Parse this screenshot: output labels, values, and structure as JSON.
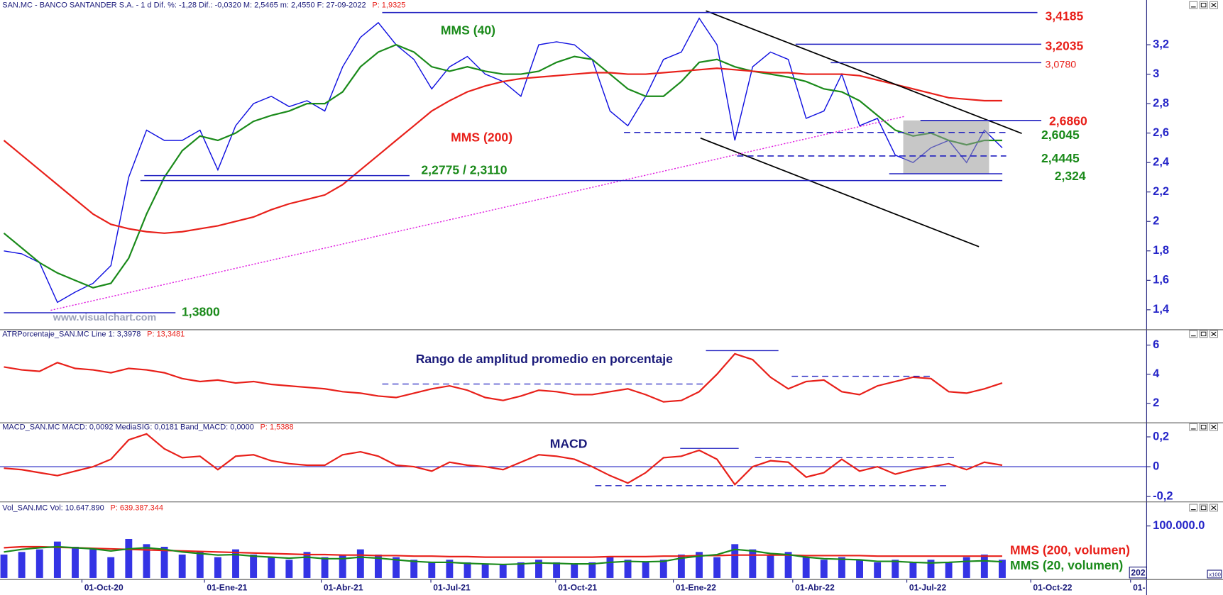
{
  "chart_data": [
    {
      "type": "line",
      "header": "SAN.MC - BANCO SANTANDER S.A. -  1 d  Dif. %: -1,28  Dif.: -0,0320  M: 2,5465  m: 2,4550  F: 27-09-2022",
      "header_p": "P: 1,9325",
      "watermark": "www.visualchart.com",
      "xlim": [
        -0.44,
        128.2
      ],
      "ylim": [
        1.27,
        3.43
      ],
      "yticks": [
        {
          "value": 1.4,
          "label": "1,4"
        },
        {
          "value": 1.6,
          "label": "1,6"
        },
        {
          "value": 1.8,
          "label": "1,8"
        },
        2,
        {
          "value": 2.2,
          "label": "2,2"
        },
        {
          "value": 2.4,
          "label": "2,4"
        },
        {
          "value": 2.6,
          "label": "2,6"
        },
        {
          "value": 2.8,
          "label": "2,8"
        },
        3,
        {
          "value": 3.2,
          "label": "3,2"
        }
      ],
      "x": [
        0,
        2,
        4,
        6,
        8,
        10,
        12,
        14,
        16,
        18,
        20,
        22,
        24,
        26,
        28,
        30,
        32,
        34,
        36,
        38,
        40,
        42,
        44,
        46,
        48,
        50,
        52,
        54,
        56,
        58,
        60,
        62,
        64,
        66,
        68,
        70,
        72,
        74,
        76,
        78,
        80,
        82,
        84,
        86,
        88,
        90,
        92,
        94,
        96,
        98,
        100,
        102,
        104,
        106,
        108,
        110,
        112
      ],
      "series": [
        {
          "color": "#1010e0",
          "values": [
            1.8,
            1.78,
            1.72,
            1.45,
            1.52,
            1.58,
            1.7,
            2.3,
            2.62,
            2.55,
            2.55,
            2.62,
            2.35,
            2.65,
            2.8,
            2.85,
            2.78,
            2.82,
            2.75,
            3.05,
            3.25,
            3.35,
            3.2,
            3.1,
            2.9,
            3.05,
            3.12,
            3.0,
            2.95,
            2.85,
            3.2,
            3.22,
            3.2,
            3.1,
            2.75,
            2.65,
            2.85,
            3.1,
            3.15,
            3.38,
            3.2,
            2.55,
            3.05,
            3.15,
            3.1,
            2.7,
            2.75,
            3.0,
            2.65,
            2.7,
            2.45,
            2.4,
            2.5,
            2.55,
            2.4,
            2.62,
            2.5
          ]
        },
        {
          "name": "MMS (40)",
          "color": "#1a8a1a",
          "values": [
            1.92,
            1.82,
            1.72,
            1.65,
            1.6,
            1.55,
            1.58,
            1.75,
            2.05,
            2.3,
            2.48,
            2.58,
            2.55,
            2.6,
            2.68,
            2.72,
            2.75,
            2.8,
            2.8,
            2.88,
            3.05,
            3.15,
            3.2,
            3.15,
            3.05,
            3.02,
            3.05,
            3.02,
            3.0,
            3.0,
            3.02,
            3.08,
            3.12,
            3.1,
            3.0,
            2.9,
            2.85,
            2.85,
            2.95,
            3.08,
            3.1,
            3.05,
            3.02,
            3.0,
            2.98,
            2.95,
            2.9,
            2.88,
            2.82,
            2.72,
            2.62,
            2.58,
            2.6,
            2.55,
            2.52,
            2.55,
            2.55
          ]
        },
        {
          "name": "MMS (200)",
          "color": "#e8201a",
          "values": [
            2.55,
            2.45,
            2.35,
            2.25,
            2.15,
            2.05,
            1.98,
            1.95,
            1.93,
            1.92,
            1.93,
            1.95,
            1.97,
            2.0,
            2.03,
            2.08,
            2.12,
            2.15,
            2.18,
            2.25,
            2.35,
            2.45,
            2.55,
            2.65,
            2.75,
            2.82,
            2.88,
            2.92,
            2.95,
            2.97,
            2.98,
            2.99,
            3.0,
            3.01,
            3.01,
            3.0,
            3.0,
            3.01,
            3.02,
            3.03,
            3.04,
            3.03,
            3.02,
            3.01,
            3.01,
            3.0,
            3.0,
            3.0,
            2.99,
            2.96,
            2.93,
            2.9,
            2.87,
            2.84,
            2.83,
            2.82,
            2.82
          ]
        }
      ],
      "levels": [
        {
          "value": 3.4185,
          "label": "3,4185",
          "color": "#e8201a"
        },
        {
          "value": 3.2035,
          "label": "3,2035",
          "color": "#e8201a"
        },
        {
          "value": 3.078,
          "label": "3,0780",
          "color": "#e8201a"
        },
        {
          "value": 2.686,
          "label": "2,6860",
          "color": "#e8201a"
        },
        {
          "value": 2.6045,
          "label": "2,6045",
          "color": "#1a8a1a"
        },
        {
          "value": 2.4445,
          "label": "2,4445",
          "color": "#1a8a1a"
        },
        {
          "value": 2.324,
          "label": "2,324",
          "color": "#1a8a1a"
        },
        {
          "value": [
            2.2775,
            2.311
          ],
          "label": "2,2775 / 2,3110",
          "color": "#1a8a1a"
        },
        {
          "value": 1.38,
          "label": "1,3800",
          "color": "#1a8a1a"
        }
      ]
    },
    {
      "type": "line",
      "header": "ATRPorcentaje_SAN.MC  Line 1: 3,3978",
      "header_p": "P: 13,3481",
      "annotation": "Rango de amplitud promedio en porcentaje",
      "xlim": [
        -0.44,
        128.2
      ],
      "ylim": [
        0.77,
        6.9
      ],
      "yticks": [
        2,
        4,
        6
      ],
      "x": [
        0,
        2,
        4,
        6,
        8,
        10,
        12,
        14,
        16,
        18,
        20,
        22,
        24,
        26,
        28,
        30,
        32,
        34,
        36,
        38,
        40,
        42,
        44,
        46,
        48,
        50,
        52,
        54,
        56,
        58,
        60,
        62,
        64,
        66,
        68,
        70,
        72,
        74,
        76,
        78,
        80,
        82,
        84,
        86,
        88,
        90,
        92,
        94,
        96,
        98,
        100,
        102,
        104,
        106,
        108,
        110,
        112
      ],
      "series": [
        {
          "color": "#e8201a",
          "values": [
            4.5,
            4.3,
            4.2,
            4.8,
            4.4,
            4.3,
            4.1,
            4.4,
            4.3,
            4.1,
            3.7,
            3.5,
            3.6,
            3.4,
            3.5,
            3.3,
            3.2,
            3.1,
            3.0,
            2.8,
            2.7,
            2.5,
            2.4,
            2.7,
            3.0,
            3.2,
            2.9,
            2.4,
            2.2,
            2.5,
            2.9,
            2.8,
            2.6,
            2.6,
            2.8,
            3.0,
            2.6,
            2.1,
            2.2,
            2.8,
            4.0,
            5.4,
            5.0,
            3.8,
            3.0,
            3.5,
            3.6,
            2.8,
            2.6,
            3.2,
            3.5,
            3.8,
            3.7,
            2.8,
            2.7,
            3.0,
            3.4
          ]
        }
      ]
    },
    {
      "type": "line",
      "header": "MACD_SAN.MC  MACD: 0,0092  MediaSIG: 0,0181  Band_MACD: 0,0000",
      "header_p": "P: 1,5388",
      "annotation": "MACD",
      "zero_line": true,
      "xlim": [
        -0.44,
        128.2
      ],
      "ylim": [
        -0.226,
        0.284
      ],
      "yticks": [
        {
          "value": -0.2,
          "label": "-0,2"
        },
        0,
        {
          "value": 0.2,
          "label": "0,2"
        }
      ],
      "x": [
        0,
        2,
        4,
        6,
        8,
        10,
        12,
        14,
        16,
        18,
        20,
        22,
        24,
        26,
        28,
        30,
        32,
        34,
        36,
        38,
        40,
        42,
        44,
        46,
        48,
        50,
        52,
        54,
        56,
        58,
        60,
        62,
        64,
        66,
        68,
        70,
        72,
        74,
        76,
        78,
        80,
        82,
        84,
        86,
        88,
        90,
        92,
        94,
        96,
        98,
        100,
        102,
        104,
        106,
        108,
        110,
        112
      ],
      "series": [
        {
          "color": "#e8201a",
          "values": [
            -0.01,
            -0.02,
            -0.04,
            -0.06,
            -0.03,
            0,
            0.05,
            0.18,
            0.22,
            0.12,
            0.06,
            0.07,
            -0.02,
            0.07,
            0.08,
            0.04,
            0.02,
            0.01,
            0.01,
            0.08,
            0.1,
            0.07,
            0.01,
            0,
            -0.03,
            0.03,
            0.01,
            0,
            -0.02,
            0.03,
            0.08,
            0.07,
            0.05,
            0,
            -0.06,
            -0.11,
            -0.04,
            0.06,
            0.07,
            0.11,
            0.05,
            -0.12,
            0,
            0.04,
            0.03,
            -0.07,
            -0.04,
            0.05,
            -0.03,
            0,
            -0.05,
            -0.02,
            0,
            0.02,
            -0.02,
            0.03,
            0.01
          ]
        }
      ]
    },
    {
      "type": "bar",
      "header": "Vol_SAN.MC  Vol: 10.647.890",
      "header_p": "P: 639.387.344",
      "corner_label": "202",
      "scale_label": "x100",
      "xlim": [
        -0.44,
        128.2
      ],
      "ylim": [
        0,
        141800000
      ],
      "yticks": [
        {
          "value": 100000000,
          "label": "100.000.0"
        }
      ],
      "xticks": [
        {
          "value": 8.75,
          "label": "01-Oct-20"
        },
        {
          "value": 22.5,
          "label": "01-Ene-21"
        },
        {
          "value": 35.6,
          "label": "01-Abr-21"
        },
        {
          "value": 47.9,
          "label": "01-Jul-21"
        },
        {
          "value": 61.9,
          "label": "01-Oct-21"
        },
        {
          "value": 75.1,
          "label": "01-Ene-22"
        },
        {
          "value": 88.5,
          "label": "01-Abr-22"
        },
        {
          "value": 101.3,
          "label": "01-Jul-22"
        },
        {
          "value": 115.2,
          "label": "01-Oct-22"
        },
        {
          "value": 126.4,
          "label": "01-"
        }
      ],
      "x": [
        0,
        2,
        4,
        6,
        8,
        10,
        12,
        14,
        16,
        18,
        20,
        22,
        24,
        26,
        28,
        30,
        32,
        34,
        36,
        38,
        40,
        42,
        44,
        46,
        48,
        50,
        52,
        54,
        56,
        58,
        60,
        62,
        64,
        66,
        68,
        70,
        72,
        74,
        76,
        78,
        80,
        82,
        84,
        86,
        88,
        90,
        92,
        94,
        96,
        98,
        100,
        102,
        104,
        106,
        108,
        110,
        112
      ],
      "color": "#1010e0",
      "values": [
        45000000,
        50000000,
        55000000,
        70000000,
        60000000,
        55000000,
        40000000,
        75000000,
        65000000,
        60000000,
        45000000,
        50000000,
        40000000,
        55000000,
        45000000,
        40000000,
        35000000,
        50000000,
        40000000,
        45000000,
        55000000,
        45000000,
        40000000,
        35000000,
        30000000,
        35000000,
        30000000,
        28000000,
        25000000,
        30000000,
        35000000,
        30000000,
        28000000,
        30000000,
        40000000,
        35000000,
        30000000,
        35000000,
        45000000,
        50000000,
        40000000,
        65000000,
        55000000,
        45000000,
        50000000,
        40000000,
        35000000,
        40000000,
        35000000,
        30000000,
        35000000,
        30000000,
        35000000,
        30000000,
        40000000,
        45000000,
        35000000
      ],
      "series": [
        {
          "name": "MMS (200, volumen)",
          "color": "#e8201a",
          "values": [
            58000000,
            60000000,
            60000000,
            59000000,
            58000000,
            57000000,
            56000000,
            55000000,
            54000000,
            53000000,
            52000000,
            51000000,
            50000000,
            49000000,
            48000000,
            47000000,
            46000000,
            45000000,
            45000000,
            44000000,
            44000000,
            43000000,
            43000000,
            42000000,
            42000000,
            41000000,
            41000000,
            40000000,
            40000000,
            40000000,
            40000000,
            40000000,
            40000000,
            40000000,
            41000000,
            41000000,
            41000000,
            42000000,
            42000000,
            43000000,
            43000000,
            44000000,
            44000000,
            44000000,
            44000000,
            43000000,
            43000000,
            43000000,
            43000000,
            42000000,
            42000000,
            42000000,
            42000000,
            42000000,
            42000000,
            42000000,
            42000000
          ]
        },
        {
          "name": "MMS (20, volumen)",
          "color": "#1a8a1a",
          "values": [
            50000000,
            55000000,
            58000000,
            60000000,
            58000000,
            56000000,
            52000000,
            56000000,
            58000000,
            55000000,
            50000000,
            47000000,
            44000000,
            45000000,
            42000000,
            40000000,
            38000000,
            40000000,
            37000000,
            37000000,
            40000000,
            38000000,
            35000000,
            32000000,
            30000000,
            30000000,
            28000000,
            27000000,
            26000000,
            27000000,
            29000000,
            28000000,
            27000000,
            27000000,
            30000000,
            32000000,
            31000000,
            32000000,
            38000000,
            42000000,
            45000000,
            55000000,
            52000000,
            47000000,
            45000000,
            40000000,
            37000000,
            36000000,
            35000000,
            32000000,
            32000000,
            30000000,
            29000000,
            30000000,
            32000000,
            33000000,
            31000000
          ]
        }
      ]
    }
  ]
}
